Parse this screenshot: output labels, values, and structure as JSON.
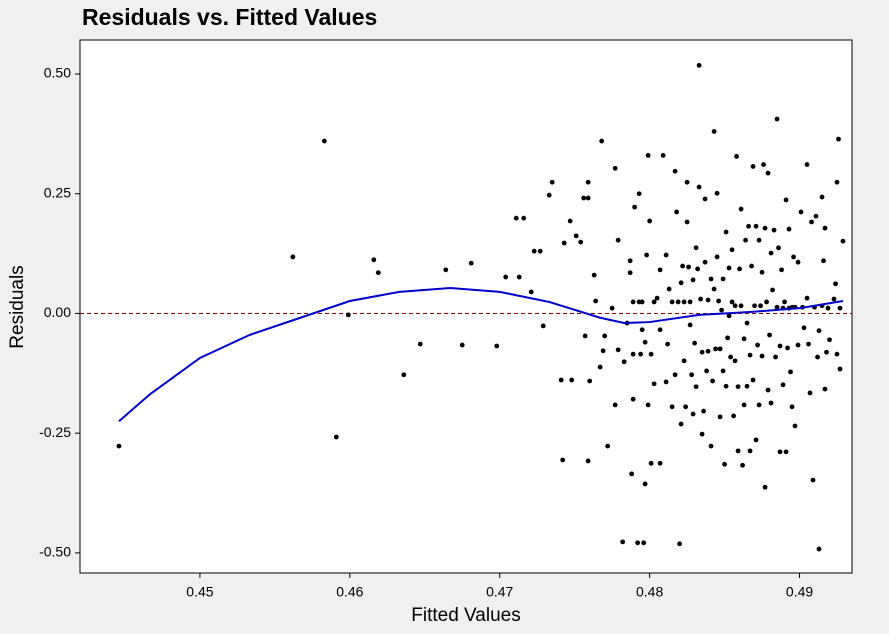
{
  "chart_data": {
    "type": "scatter",
    "title": "Residuals vs. Fitted Values",
    "xlabel": "Fitted Values",
    "ylabel": "Residuals",
    "xlim": [
      0.442,
      0.4935
    ],
    "ylim": [
      -0.542,
      0.571
    ],
    "xticks": [
      0.45,
      0.46,
      0.47,
      0.48,
      0.49
    ],
    "yticks": [
      {
        "value": -0.5,
        "label": "-0.50"
      },
      {
        "value": -0.25,
        "label": "-0.25"
      },
      {
        "value": 0,
        "label": "0.00"
      },
      {
        "value": 0.25,
        "label": "0.25"
      },
      {
        "value": 0.5,
        "label": "0.50"
      }
    ],
    "hline": {
      "value": 0,
      "color": "#8b0000"
    },
    "series": [
      {
        "type": "scatter",
        "color": "#000000",
        "x": [
          0.4446,
          0.4562,
          0.4583,
          0.4591,
          0.4599,
          0.4616,
          0.4619,
          0.4636,
          0.4647,
          0.4664,
          0.4675,
          0.4681,
          0.4698,
          0.4704,
          0.4711,
          0.4716,
          0.4713,
          0.4721,
          0.4723,
          0.4727,
          0.4729,
          0.4733,
          0.4735,
          0.4741,
          0.4742,
          0.4743,
          0.4747,
          0.4748,
          0.4751,
          0.4754,
          0.4756,
          0.4757,
          0.4759,
          0.4759,
          0.4759,
          0.476,
          0.4763,
          0.4764,
          0.4767,
          0.4768,
          0.4769,
          0.477,
          0.4772,
          0.4775,
          0.4777,
          0.4777,
          0.4779,
          0.4779,
          0.4782,
          0.4783,
          0.4785,
          0.4787,
          0.4787,
          0.4788,
          0.4789,
          0.4789,
          0.4789,
          0.479,
          0.4792,
          0.4793,
          0.4793,
          0.4794,
          0.4795,
          0.4795,
          0.4796,
          0.4797,
          0.4797,
          0.4798,
          0.4799,
          0.4799,
          0.48,
          0.4801,
          0.4801,
          0.4803,
          0.4803,
          0.4805,
          0.4807,
          0.4807,
          0.4807,
          0.4809,
          0.4811,
          0.4811,
          0.4812,
          0.4813,
          0.4815,
          0.4815,
          0.4817,
          0.4817,
          0.4818,
          0.4819,
          0.482,
          0.4821,
          0.4821,
          0.4822,
          0.4823,
          0.4823,
          0.4824,
          0.4825,
          0.4825,
          0.4826,
          0.4827,
          0.4827,
          0.4828,
          0.4829,
          0.4829,
          0.483,
          0.4831,
          0.4831,
          0.4832,
          0.4833,
          0.4833,
          0.4834,
          0.4835,
          0.4835,
          0.4836,
          0.4837,
          0.4837,
          0.4838,
          0.4839,
          0.4839,
          0.4841,
          0.4841,
          0.4842,
          0.4843,
          0.4843,
          0.4844,
          0.4845,
          0.4845,
          0.4846,
          0.4847,
          0.4847,
          0.4848,
          0.4849,
          0.4849,
          0.485,
          0.4851,
          0.4851,
          0.4852,
          0.4853,
          0.4853,
          0.4854,
          0.4855,
          0.4855,
          0.4856,
          0.4857,
          0.4857,
          0.4858,
          0.4859,
          0.4859,
          0.486,
          0.4861,
          0.4861,
          0.4862,
          0.4863,
          0.4863,
          0.4864,
          0.4865,
          0.4865,
          0.4866,
          0.4867,
          0.4867,
          0.4868,
          0.4869,
          0.4869,
          0.487,
          0.4871,
          0.4871,
          0.4872,
          0.4873,
          0.4873,
          0.4874,
          0.4875,
          0.4875,
          0.4876,
          0.4877,
          0.4877,
          0.4878,
          0.4879,
          0.4879,
          0.488,
          0.4881,
          0.4881,
          0.4882,
          0.4883,
          0.4884,
          0.4885,
          0.4885,
          0.4886,
          0.4887,
          0.4887,
          0.4888,
          0.4889,
          0.4889,
          0.489,
          0.4891,
          0.4891,
          0.4892,
          0.4893,
          0.4893,
          0.4894,
          0.4895,
          0.4895,
          0.4896,
          0.4897,
          0.4897,
          0.4899,
          0.4899,
          0.4901,
          0.4902,
          0.4903,
          0.4905,
          0.4905,
          0.4906,
          0.4907,
          0.4908,
          0.4909,
          0.491,
          0.4911,
          0.4912,
          0.4913,
          0.4913,
          0.4915,
          0.4915,
          0.4916,
          0.4917,
          0.4917,
          0.4918,
          0.4919,
          0.492,
          0.4923,
          0.4924,
          0.4925,
          0.4925,
          0.4926,
          0.4927,
          0.4927,
          0.4929
        ],
        "values": [
          -0.277,
          0.118,
          0.36,
          -0.258,
          -0.003,
          0.112,
          0.085,
          -0.128,
          -0.064,
          0.091,
          -0.066,
          0.105,
          -0.068,
          0.076,
          0.199,
          0.199,
          0.076,
          0.045,
          0.13,
          0.13,
          -0.026,
          0.247,
          0.274,
          -0.139,
          -0.306,
          0.147,
          0.193,
          -0.139,
          0.162,
          0.149,
          0.241,
          -0.047,
          0.274,
          0.241,
          -0.308,
          -0.141,
          0.08,
          0.026,
          -0.112,
          0.36,
          -0.078,
          -0.047,
          -0.277,
          0.011,
          0.303,
          -0.191,
          0.153,
          -0.076,
          -0.477,
          -0.101,
          -0.02,
          0.085,
          0.11,
          -0.335,
          -0.085,
          -0.179,
          0.024,
          0.222,
          -0.479,
          0.024,
          0.25,
          -0.085,
          -0.034,
          0.024,
          -0.479,
          -0.06,
          -0.356,
          0.122,
          0.33,
          -0.191,
          0.193,
          -0.085,
          -0.313,
          0.024,
          -0.147,
          0.032,
          0.091,
          -0.313,
          -0.034,
          0.33,
          -0.143,
          0.122,
          -0.064,
          0.051,
          -0.195,
          0.024,
          0.297,
          -0.128,
          0.212,
          0.024,
          -0.481,
          0.064,
          -0.231,
          0.099,
          -0.099,
          0.024,
          -0.195,
          0.274,
          0.191,
          0.097,
          0.024,
          -0.024,
          -0.128,
          -0.21,
          0.07,
          -0.062,
          0.137,
          -0.153,
          0.093,
          0.518,
          0.264,
          0.03,
          -0.252,
          -0.081,
          -0.204,
          0.107,
          0.239,
          -0.12,
          0.028,
          -0.079,
          0.072,
          -0.277,
          -0.141,
          0.38,
          0.051,
          -0.074,
          0.251,
          0.118,
          0.026,
          -0.074,
          -0.216,
          0.007,
          -0.12,
          0.072,
          -0.315,
          0.17,
          -0.152,
          -0.051,
          -0.005,
          0.095,
          -0.091,
          0.024,
          0.133,
          -0.214,
          -0.099,
          0.016,
          0.328,
          -0.153,
          -0.287,
          0.093,
          0.218,
          0.016,
          -0.317,
          -0.191,
          -0.053,
          0.153,
          -0.02,
          -0.152,
          0.182,
          -0.087,
          -0.287,
          0.099,
          0.307,
          -0.139,
          0.016,
          -0.264,
          0.182,
          -0.066,
          -0.191,
          0.153,
          0.016,
          -0.089,
          0.086,
          0.311,
          -0.363,
          0.178,
          0.024,
          -0.16,
          0.293,
          -0.045,
          -0.187,
          0.126,
          0.049,
          0.174,
          -0.091,
          0.013,
          0.406,
          0.137,
          -0.289,
          -0.068,
          0.091,
          0.011,
          -0.149,
          0.024,
          0.237,
          -0.289,
          -0.072,
          0.011,
          0.176,
          -0.122,
          -0.195,
          0.013,
          0.118,
          -0.235,
          0.013,
          0.107,
          -0.066,
          0.212,
          0.013,
          -0.03,
          0.311,
          0.032,
          -0.064,
          -0.166,
          0.191,
          -0.348,
          0.013,
          0.203,
          -0.091,
          -0.492,
          -0.036,
          0.243,
          0.016,
          0.11,
          -0.158,
          0.178,
          -0.081,
          0.011,
          -0.055,
          0.03,
          0.062,
          -0.085,
          0.274,
          0.364,
          0.011,
          -0.116,
          0.151
        ]
      },
      {
        "type": "line",
        "color": "#0000cc",
        "x": [
          0.4446,
          0.4467,
          0.45,
          0.4533,
          0.4567,
          0.46,
          0.4633,
          0.4667,
          0.47,
          0.4733,
          0.4767,
          0.4783,
          0.48,
          0.4833,
          0.4867,
          0.49,
          0.4929
        ],
        "values": [
          -0.225,
          -0.168,
          -0.093,
          -0.045,
          -0.009,
          0.026,
          0.045,
          0.053,
          0.045,
          0.024,
          -0.009,
          -0.02,
          -0.018,
          -0.003,
          0.003,
          0.011,
          0.026
        ]
      }
    ]
  }
}
